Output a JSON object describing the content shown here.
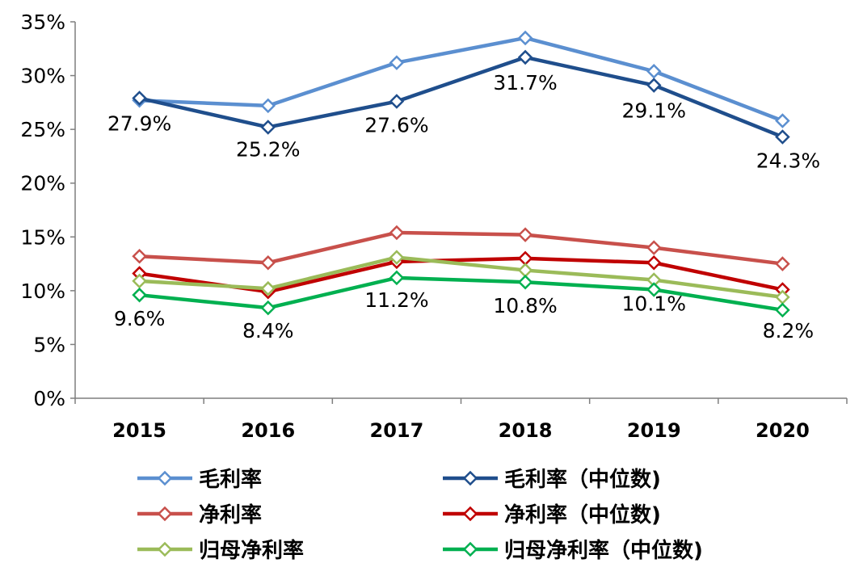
{
  "chart_data": {
    "type": "line",
    "categories": [
      "2015",
      "2016",
      "2017",
      "2018",
      "2019",
      "2020"
    ],
    "ylim": [
      0,
      35
    ],
    "yticks": [
      "0%",
      "5%",
      "10%",
      "15%",
      "20%",
      "25%",
      "30%",
      "35%"
    ],
    "grid": false,
    "legend_position": "bottom",
    "series": [
      {
        "name": "毛利率",
        "color": "#5B8FD0",
        "values": [
          27.7,
          27.2,
          31.2,
          33.5,
          30.4,
          25.8
        ]
      },
      {
        "name": "毛利率（中位数)",
        "color": "#1F4E8C",
        "values": [
          27.9,
          25.2,
          27.6,
          31.7,
          29.1,
          24.3
        ],
        "labels": [
          "27.9%",
          "25.2%",
          "27.6%",
          "31.7%",
          "29.1%",
          "24.3%"
        ]
      },
      {
        "name": "净利率",
        "color": "#C8504B",
        "values": [
          13.2,
          12.6,
          15.4,
          15.2,
          14.0,
          12.5
        ]
      },
      {
        "name": "净利率（中位数)",
        "color": "#C00000",
        "values": [
          11.6,
          9.9,
          12.7,
          13.0,
          12.6,
          10.1
        ]
      },
      {
        "name": "归母净利率",
        "color": "#9BBB59",
        "values": [
          10.9,
          10.2,
          13.1,
          11.9,
          11.0,
          9.4
        ]
      },
      {
        "name": "归母净利率（中位数)",
        "color": "#00B050",
        "values": [
          9.6,
          8.4,
          11.2,
          10.8,
          10.1,
          8.2
        ],
        "labels": [
          "9.6%",
          "8.4%",
          "11.2%",
          "10.8%",
          "10.1%",
          "8.2%"
        ]
      }
    ]
  }
}
